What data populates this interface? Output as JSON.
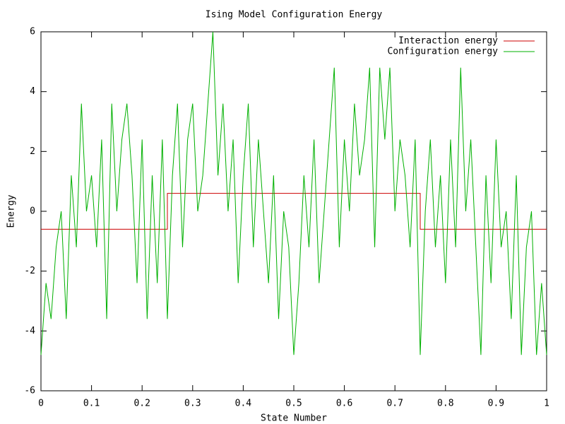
{
  "chart_data": {
    "type": "line",
    "title": "Ising Model Configuration Energy",
    "x_label": "State Number",
    "y_label": "Energy",
    "xlim": [
      0,
      1
    ],
    "xticks": [
      0,
      0.1,
      0.2,
      0.3,
      0.4,
      0.5,
      0.6,
      0.7,
      0.8,
      0.9,
      1
    ],
    "ylim": [
      -6,
      6
    ],
    "yticks": [
      -6,
      -4,
      -2,
      0,
      2,
      4,
      6
    ],
    "legend": "top-right",
    "grid": false,
    "series": [
      {
        "name": "Interaction energy",
        "color": "#cc0000",
        "x": [
          0,
          0.25,
          0.25,
          0.75,
          0.75,
          1
        ],
        "values": [
          -0.6,
          -0.6,
          0.6,
          0.6,
          -0.6,
          -0.6
        ]
      },
      {
        "name": "Configuration energy",
        "color": "#00b000",
        "x": [
          0,
          0.01,
          0.02,
          0.03,
          0.04,
          0.05,
          0.06,
          0.07,
          0.08,
          0.09,
          0.1,
          0.11,
          0.12,
          0.13,
          0.14,
          0.15,
          0.16,
          0.17,
          0.18,
          0.19,
          0.2,
          0.21,
          0.22,
          0.23,
          0.24,
          0.25,
          0.26,
          0.27,
          0.28,
          0.29,
          0.3,
          0.31,
          0.32,
          0.33,
          0.34,
          0.35,
          0.36,
          0.37,
          0.38,
          0.39,
          0.4,
          0.41,
          0.42,
          0.43,
          0.44,
          0.45,
          0.46,
          0.47,
          0.48,
          0.49,
          0.5,
          0.51,
          0.52,
          0.53,
          0.54,
          0.55,
          0.56,
          0.57,
          0.58,
          0.59,
          0.6,
          0.61,
          0.62,
          0.63,
          0.64,
          0.65,
          0.66,
          0.67,
          0.68,
          0.69,
          0.7,
          0.71,
          0.72,
          0.73,
          0.74,
          0.75,
          0.76,
          0.77,
          0.78,
          0.79,
          0.8,
          0.81,
          0.82,
          0.83,
          0.84,
          0.85,
          0.86,
          0.87,
          0.88,
          0.89,
          0.9,
          0.91,
          0.92,
          0.93,
          0.94,
          0.95,
          0.96,
          0.97,
          0.98,
          0.99,
          1
        ],
        "values": [
          -4.8,
          -2.4,
          -3.6,
          -1.2,
          0,
          -3.6,
          1.2,
          -1.2,
          3.6,
          0,
          1.2,
          -1.2,
          2.4,
          -3.6,
          3.6,
          0,
          2.4,
          3.6,
          1.2,
          -2.4,
          2.4,
          -3.6,
          1.2,
          -2.4,
          2.4,
          -3.6,
          1.2,
          3.6,
          -1.2,
          2.4,
          3.6,
          0,
          1.2,
          3.6,
          6,
          1.2,
          3.6,
          0,
          2.4,
          -2.4,
          1.2,
          3.6,
          -1.2,
          2.4,
          0,
          -2.4,
          1.2,
          -3.6,
          0,
          -1.2,
          -4.8,
          -2.4,
          1.2,
          -1.2,
          2.4,
          -2.4,
          0,
          2.4,
          4.8,
          -1.2,
          2.4,
          0,
          3.6,
          1.2,
          2.4,
          4.8,
          -1.2,
          4.8,
          2.4,
          4.8,
          0,
          2.4,
          1.2,
          -1.2,
          2.4,
          -4.8,
          0,
          2.4,
          -1.2,
          1.2,
          -2.4,
          2.4,
          -1.2,
          4.8,
          0,
          2.4,
          -1.2,
          -4.8,
          1.2,
          -2.4,
          2.4,
          -1.2,
          0,
          -3.6,
          1.2,
          -4.8,
          -1.2,
          0,
          -4.8,
          -2.4,
          -4.8
        ]
      }
    ]
  }
}
